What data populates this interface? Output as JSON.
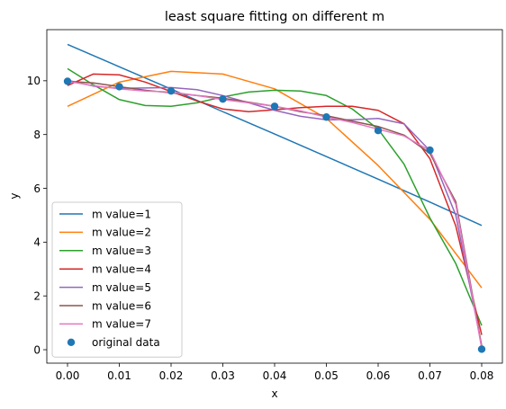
{
  "chart_data": {
    "type": "line",
    "title": "least square fitting on different m",
    "xlabel": "x",
    "ylabel": "y",
    "xlim": [
      -0.004,
      0.084
    ],
    "ylim": [
      -0.5,
      11.9
    ],
    "xticks": [
      0.0,
      0.01,
      0.02,
      0.03,
      0.04,
      0.05,
      0.06,
      0.07,
      0.08
    ],
    "xtick_labels": [
      "0.00",
      "0.01",
      "0.02",
      "0.03",
      "0.04",
      "0.05",
      "0.06",
      "0.07",
      "0.08"
    ],
    "yticks": [
      0,
      2,
      4,
      6,
      8,
      10
    ],
    "ytick_labels": [
      "0",
      "2",
      "4",
      "6",
      "8",
      "10"
    ],
    "grid": false,
    "legend_position": "lower-left",
    "series": [
      {
        "name": "m value=1",
        "color": "#1f77b4",
        "x": [
          0.0,
          0.01,
          0.02,
          0.03,
          0.04,
          0.05,
          0.06,
          0.07,
          0.08
        ],
        "y": [
          11.35,
          10.52,
          9.69,
          8.85,
          8.02,
          7.18,
          6.34,
          5.49,
          4.62
        ]
      },
      {
        "name": "m value=2",
        "color": "#ff7f0e",
        "x": [
          0.0,
          0.01,
          0.02,
          0.03,
          0.04,
          0.05,
          0.06,
          0.07,
          0.08
        ],
        "y": [
          9.05,
          9.95,
          10.35,
          10.25,
          9.7,
          8.6,
          6.85,
          4.85,
          2.3
        ]
      },
      {
        "name": "m value=3",
        "color": "#2ca02c",
        "x": [
          0.0,
          0.005,
          0.01,
          0.015,
          0.02,
          0.025,
          0.03,
          0.035,
          0.04,
          0.045,
          0.05,
          0.055,
          0.06,
          0.065,
          0.07,
          0.075,
          0.08
        ],
        "y": [
          10.45,
          9.85,
          9.3,
          9.08,
          9.05,
          9.18,
          9.4,
          9.58,
          9.65,
          9.62,
          9.45,
          8.95,
          8.2,
          6.9,
          4.9,
          3.2,
          0.9
        ]
      },
      {
        "name": "m value=4",
        "color": "#d62728",
        "x": [
          0.0,
          0.005,
          0.01,
          0.015,
          0.02,
          0.025,
          0.03,
          0.035,
          0.04,
          0.045,
          0.05,
          0.055,
          0.06,
          0.065,
          0.07,
          0.075,
          0.08
        ],
        "y": [
          9.82,
          10.25,
          10.22,
          9.95,
          9.6,
          9.25,
          8.95,
          8.85,
          8.92,
          9.0,
          9.05,
          9.05,
          8.9,
          8.4,
          7.1,
          4.6,
          0.55
        ]
      },
      {
        "name": "m value=5",
        "color": "#9467bd",
        "x": [
          0.0,
          0.005,
          0.01,
          0.015,
          0.02,
          0.025,
          0.03,
          0.035,
          0.04,
          0.045,
          0.05,
          0.055,
          0.06,
          0.065,
          0.07,
          0.075,
          0.08
        ],
        "y": [
          10.02,
          9.8,
          9.72,
          9.73,
          9.75,
          9.67,
          9.45,
          9.18,
          8.9,
          8.68,
          8.55,
          8.55,
          8.6,
          8.4,
          7.4,
          5.0,
          0.15
        ]
      },
      {
        "name": "m value=6",
        "color": "#8c564b",
        "x": [
          0.0,
          0.005,
          0.01,
          0.015,
          0.02,
          0.025,
          0.03,
          0.035,
          0.04,
          0.045,
          0.05,
          0.055,
          0.06,
          0.065,
          0.07,
          0.075,
          0.08
        ],
        "y": [
          9.98,
          9.92,
          9.78,
          9.65,
          9.55,
          9.45,
          9.35,
          9.2,
          9.05,
          8.85,
          8.7,
          8.5,
          8.3,
          7.98,
          7.3,
          5.5,
          0.12
        ]
      },
      {
        "name": "m value=7",
        "color": "#e377c2",
        "x": [
          0.0,
          0.005,
          0.01,
          0.015,
          0.02,
          0.025,
          0.03,
          0.035,
          0.04,
          0.045,
          0.05,
          0.055,
          0.06,
          0.065,
          0.07,
          0.075,
          0.08
        ],
        "y": [
          9.98,
          9.82,
          9.7,
          9.62,
          9.58,
          9.45,
          9.3,
          9.18,
          9.05,
          8.88,
          8.65,
          8.45,
          8.2,
          7.95,
          7.4,
          5.4,
          0.05
        ]
      }
    ],
    "scatter": {
      "name": "original data",
      "color": "#1f77b4",
      "x": [
        0.0,
        0.01,
        0.02,
        0.03,
        0.04,
        0.05,
        0.06,
        0.07,
        0.08
      ],
      "y": [
        9.98,
        9.78,
        9.62,
        9.32,
        9.05,
        8.65,
        8.15,
        7.42,
        0.02
      ]
    }
  }
}
